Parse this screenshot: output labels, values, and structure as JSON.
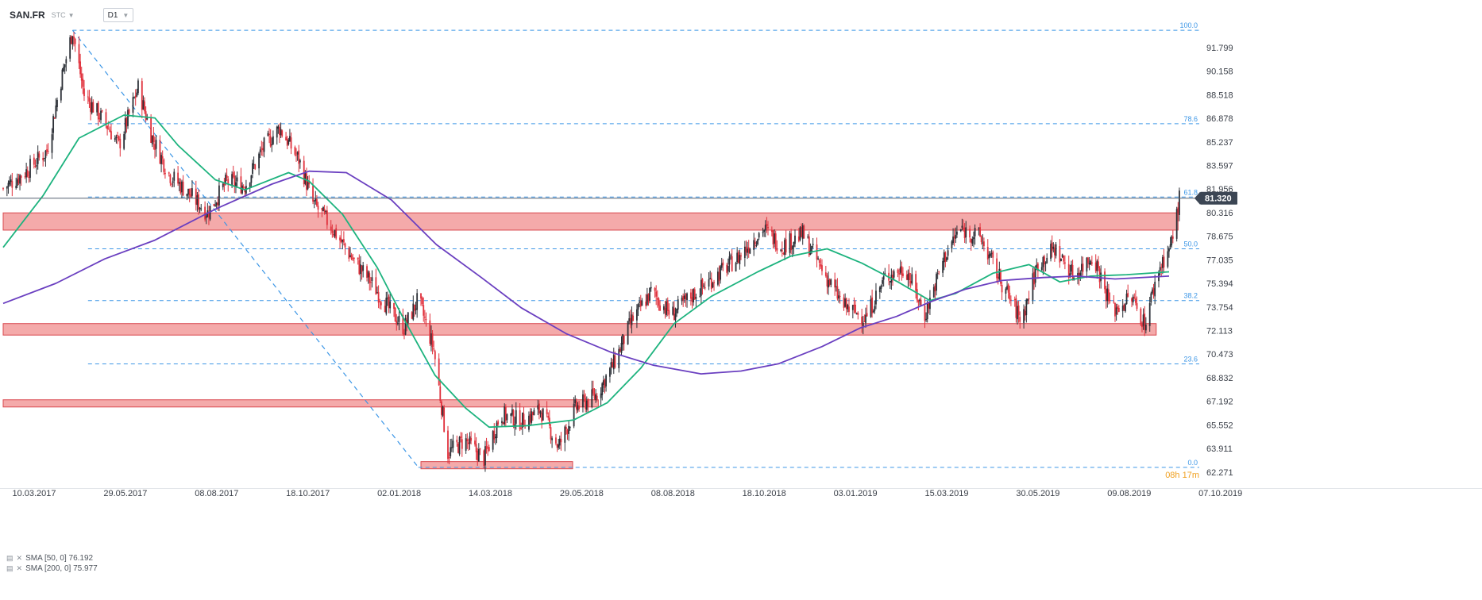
{
  "header": {
    "symbol": "SAN.FR",
    "source": "STC",
    "timeframe": "D1"
  },
  "legend": [
    {
      "label": "SMA [50, 0] 76.192",
      "color": "#1db37e"
    },
    {
      "label": "SMA [200, 0] 75.977",
      "color": "#6a3fc0"
    }
  ],
  "current_price": {
    "label": "81.320",
    "value": 81.32
  },
  "countdown": "08h 17m",
  "colors": {
    "up": "#2b2f36",
    "down": "#e0313c",
    "sma50": "#1db37e",
    "sma200": "#6a3fc0",
    "zone_fill": "#f29b9b",
    "zone_stroke": "#d9494f",
    "fib": "#3c96e6",
    "price_tag": "#3c4654",
    "countdown": "#f0a020"
  },
  "chart_data": {
    "type": "candlestick",
    "x_range": [
      "2017-03-10",
      "2019-10-07"
    ],
    "x_ticks": [
      "10.03.2017",
      "29.05.2017",
      "08.08.2017",
      "18.10.2017",
      "02.01.2018",
      "14.03.2018",
      "29.05.2018",
      "08.08.2018",
      "18.10.2018",
      "03.01.2019",
      "15.03.2019",
      "30.05.2019",
      "09.08.2019",
      "07.10.2019"
    ],
    "y_range": [
      61.6,
      94.0
    ],
    "y_ticks": [
      "91.799",
      "90.158",
      "88.518",
      "86.878",
      "85.237",
      "83.597",
      "81.956",
      "80.316",
      "78.675",
      "77.035",
      "75.394",
      "73.754",
      "72.113",
      "70.473",
      "68.832",
      "67.192",
      "65.552",
      "63.911",
      "62.271"
    ],
    "fibonacci": {
      "high": 93.0,
      "low": 62.6,
      "levels": [
        {
          "label": "100.0",
          "value": 93.0
        },
        {
          "label": "78.6",
          "value": 86.5
        },
        {
          "label": "61.8",
          "value": 81.4
        },
        {
          "label": "50.0",
          "value": 77.8
        },
        {
          "label": "38.2",
          "value": 74.2
        },
        {
          "label": "23.6",
          "value": 69.8
        },
        {
          "label": "0.0",
          "value": 62.6
        }
      ]
    },
    "zones": [
      {
        "x1": "2017-03-10",
        "x2": "2019-09-10",
        "y_top": 80.3,
        "y_bottom": 79.1
      },
      {
        "x1": "2017-03-10",
        "x2": "2019-08-24",
        "y_top": 72.6,
        "y_bottom": 71.8
      },
      {
        "x1": "2017-03-10",
        "x2": "2018-06-16",
        "y_top": 67.3,
        "y_bottom": 66.8
      },
      {
        "x1": "2018-01-29",
        "x2": "2018-05-27",
        "y_top": 63.0,
        "y_bottom": 62.5
      }
    ],
    "trendline": {
      "x1": "2017-05-03",
      "y1": 93.0,
      "x2": "2018-01-27",
      "y2": 62.6
    },
    "sma50": [
      [
        "2017-03-10",
        77.9
      ],
      [
        "2017-04-10",
        81.5
      ],
      [
        "2017-05-08",
        85.5
      ],
      [
        "2017-06-12",
        87.1
      ],
      [
        "2017-07-06",
        86.9
      ],
      [
        "2017-07-24",
        85.0
      ],
      [
        "2017-08-22",
        82.6
      ],
      [
        "2017-09-14",
        81.9
      ],
      [
        "2017-10-18",
        83.1
      ],
      [
        "2017-11-03",
        82.5
      ],
      [
        "2017-11-29",
        80.2
      ],
      [
        "2017-12-26",
        76.5
      ],
      [
        "2018-01-14",
        73.2
      ],
      [
        "2018-02-09",
        69.0
      ],
      [
        "2018-03-05",
        66.7
      ],
      [
        "2018-03-23",
        65.4
      ],
      [
        "2018-04-22",
        65.5
      ],
      [
        "2018-05-28",
        65.9
      ],
      [
        "2018-06-23",
        67.1
      ],
      [
        "2018-07-19",
        69.5
      ],
      [
        "2018-08-14",
        72.6
      ],
      [
        "2018-09-12",
        74.5
      ],
      [
        "2018-10-18",
        76.2
      ],
      [
        "2018-11-13",
        77.3
      ],
      [
        "2018-12-11",
        77.8
      ],
      [
        "2019-01-07",
        76.8
      ],
      [
        "2019-02-04",
        75.5
      ],
      [
        "2019-03-01",
        74.2
      ],
      [
        "2019-03-21",
        74.7
      ],
      [
        "2019-04-19",
        76.1
      ],
      [
        "2019-05-17",
        76.7
      ],
      [
        "2019-06-10",
        75.5
      ],
      [
        "2019-07-04",
        75.9
      ],
      [
        "2019-08-01",
        76.0
      ],
      [
        "2019-09-03",
        76.2
      ]
    ],
    "sma200": [
      [
        "2017-03-10",
        74.0
      ],
      [
        "2017-04-20",
        75.4
      ],
      [
        "2017-05-28",
        77.1
      ],
      [
        "2017-07-06",
        78.4
      ],
      [
        "2017-08-23",
        80.6
      ],
      [
        "2017-10-05",
        82.3
      ],
      [
        "2017-11-03",
        83.2
      ],
      [
        "2017-12-02",
        83.1
      ],
      [
        "2018-01-06",
        81.2
      ],
      [
        "2018-02-10",
        78.1
      ],
      [
        "2018-03-17",
        75.8
      ],
      [
        "2018-04-17",
        73.7
      ],
      [
        "2018-05-22",
        71.9
      ],
      [
        "2018-06-26",
        70.6
      ],
      [
        "2018-07-29",
        69.7
      ],
      [
        "2018-09-04",
        69.1
      ],
      [
        "2018-10-05",
        69.3
      ],
      [
        "2018-11-03",
        69.8
      ],
      [
        "2018-12-07",
        71.0
      ],
      [
        "2019-01-06",
        72.3
      ],
      [
        "2019-02-03",
        73.1
      ],
      [
        "2019-03-01",
        74.1
      ],
      [
        "2019-03-29",
        75.0
      ],
      [
        "2019-04-26",
        75.6
      ],
      [
        "2019-05-28",
        75.8
      ],
      [
        "2019-06-23",
        75.9
      ],
      [
        "2019-07-23",
        75.7
      ],
      [
        "2019-09-03",
        75.9
      ]
    ],
    "price_path": [
      [
        "2017-03-10",
        82.0
      ],
      [
        "2017-03-28",
        83.2
      ],
      [
        "2017-04-13",
        84.6
      ],
      [
        "2017-04-24",
        89.5
      ],
      [
        "2017-05-03",
        93.0
      ],
      [
        "2017-05-12",
        88.5
      ],
      [
        "2017-05-29",
        86.5
      ],
      [
        "2017-06-08",
        85.0
      ],
      [
        "2017-06-23",
        89.0
      ],
      [
        "2017-07-04",
        85.5
      ],
      [
        "2017-07-17",
        83.0
      ],
      [
        "2017-08-03",
        81.5
      ],
      [
        "2017-08-16",
        80.3
      ],
      [
        "2017-08-31",
        82.5
      ],
      [
        "2017-09-14",
        82.2
      ],
      [
        "2017-09-28",
        84.8
      ],
      [
        "2017-10-11",
        86.2
      ],
      [
        "2017-10-26",
        84.0
      ],
      [
        "2017-11-06",
        81.0
      ],
      [
        "2017-11-19",
        79.5
      ],
      [
        "2017-12-06",
        77.2
      ],
      [
        "2017-12-21",
        75.5
      ],
      [
        "2018-01-05",
        73.5
      ],
      [
        "2018-01-16",
        72.3
      ],
      [
        "2018-01-27",
        74.3
      ],
      [
        "2018-02-08",
        70.8
      ],
      [
        "2018-02-19",
        63.6
      ],
      [
        "2018-03-04",
        64.5
      ],
      [
        "2018-03-19",
        63.2
      ],
      [
        "2018-04-01",
        66.3
      ],
      [
        "2018-04-18",
        65.8
      ],
      [
        "2018-05-02",
        66.6
      ],
      [
        "2018-05-16",
        64.0
      ],
      [
        "2018-05-29",
        66.7
      ],
      [
        "2018-06-14",
        67.6
      ],
      [
        "2018-06-28",
        69.8
      ],
      [
        "2018-07-12",
        72.8
      ],
      [
        "2018-07-27",
        74.8
      ],
      [
        "2018-08-12",
        73.2
      ],
      [
        "2018-08-27",
        74.5
      ],
      [
        "2018-09-14",
        75.8
      ],
      [
        "2018-10-03",
        77.2
      ],
      [
        "2018-10-22",
        79.2
      ],
      [
        "2018-11-06",
        78.0
      ],
      [
        "2018-11-22",
        78.8
      ],
      [
        "2018-12-08",
        76.2
      ],
      [
        "2018-12-24",
        73.8
      ],
      [
        "2019-01-10",
        73.0
      ],
      [
        "2019-01-25",
        75.8
      ],
      [
        "2019-02-10",
        76.5
      ],
      [
        "2019-02-25",
        73.2
      ],
      [
        "2019-03-12",
        77.2
      ],
      [
        "2019-03-24",
        79.2
      ],
      [
        "2019-04-09",
        78.6
      ],
      [
        "2019-04-26",
        75.4
      ],
      [
        "2019-05-11",
        72.8
      ],
      [
        "2019-05-24",
        76.8
      ],
      [
        "2019-06-06",
        77.8
      ],
      [
        "2019-06-21",
        75.9
      ],
      [
        "2019-07-06",
        77.4
      ],
      [
        "2019-07-21",
        73.5
      ],
      [
        "2019-08-05",
        74.4
      ],
      [
        "2019-08-15",
        72.6
      ],
      [
        "2019-08-26",
        76.4
      ],
      [
        "2019-09-05",
        78.2
      ],
      [
        "2019-09-11",
        81.3
      ]
    ]
  }
}
